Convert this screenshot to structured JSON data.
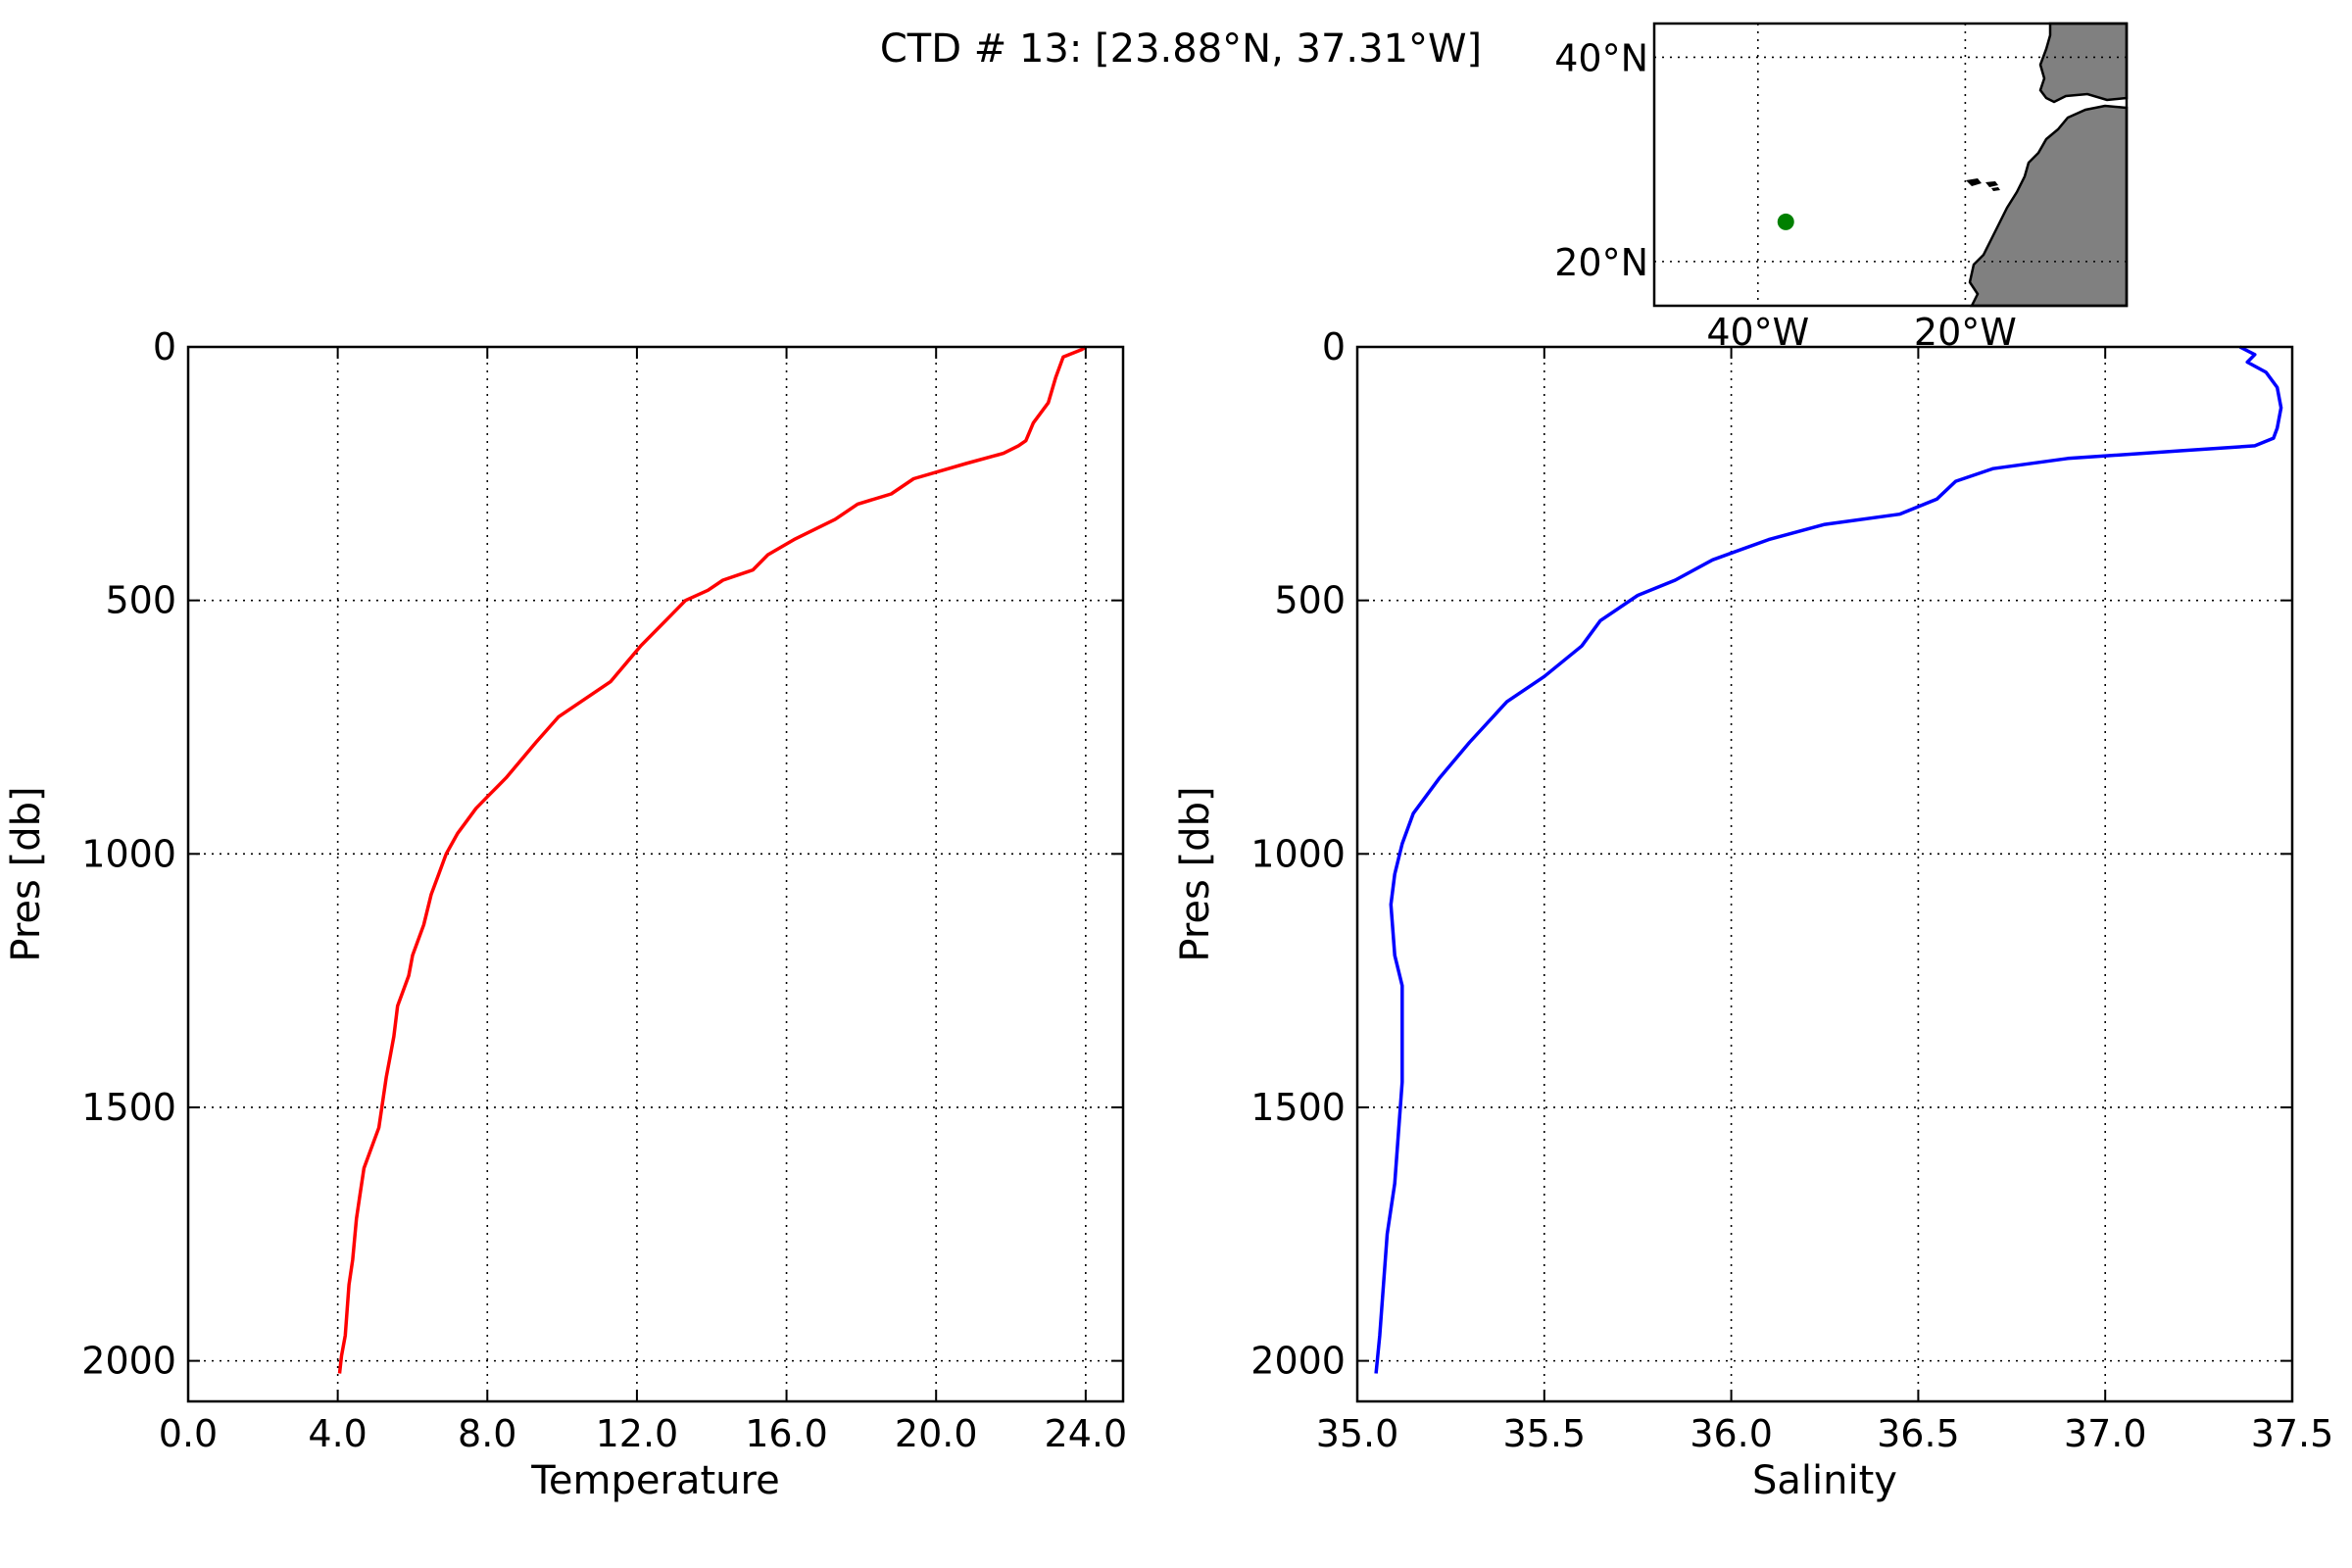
{
  "figure_title": "CTD # 13: [23.88°N, 37.31°W]",
  "chart_data": [
    {
      "type": "line",
      "xlabel": "Temperature",
      "ylabel": "Pres [db]",
      "xlim": [
        0,
        25
      ],
      "ylim": [
        2080,
        0
      ],
      "y_inverted": true,
      "xticks": [
        0,
        4,
        8,
        12,
        16,
        20,
        24
      ],
      "xtick_labels": [
        "0.0",
        "4.0",
        "8.0",
        "12.0",
        "16.0",
        "20.0",
        "24.0"
      ],
      "yticks": [
        0,
        500,
        1000,
        1500,
        2000
      ],
      "ytick_labels": [
        "0",
        "500",
        "1000",
        "1500",
        "2000"
      ],
      "grid": true,
      "series": [
        {
          "color": "#ff0000",
          "x": [
            24.0,
            23.9,
            23.4,
            23.2,
            23.0,
            22.6,
            22.4,
            22.2,
            21.8,
            20.8,
            19.4,
            18.8,
            17.9,
            17.3,
            16.2,
            15.5,
            15.1,
            14.3,
            13.9,
            13.3,
            12.9,
            12.1,
            11.3,
            10.5,
            9.9,
            9.3,
            8.5,
            8.1,
            7.7,
            7.4,
            7.2,
            6.9,
            6.7,
            6.5,
            6.3,
            6.0,
            5.9,
            5.6,
            5.5,
            5.4,
            5.3,
            5.1,
            4.9,
            4.7,
            4.6,
            4.5,
            4.45,
            4.4,
            4.3,
            4.25,
            4.2,
            4.1,
            4.05
          ],
          "y": [
            0,
            5,
            20,
            60,
            110,
            150,
            185,
            195,
            210,
            230,
            260,
            290,
            310,
            340,
            380,
            410,
            440,
            460,
            480,
            500,
            530,
            590,
            660,
            700,
            730,
            780,
            850,
            880,
            910,
            940,
            960,
            1000,
            1040,
            1080,
            1140,
            1200,
            1240,
            1300,
            1360,
            1400,
            1440,
            1540,
            1580,
            1620,
            1670,
            1720,
            1760,
            1800,
            1850,
            1900,
            1950,
            1990,
            2025
          ]
        }
      ]
    },
    {
      "type": "line",
      "xlabel": "Salinity",
      "ylabel": "Pres [db]",
      "xlim": [
        35.0,
        37.5
      ],
      "ylim": [
        2080,
        0
      ],
      "y_inverted": true,
      "xticks": [
        35.0,
        35.5,
        36.0,
        36.5,
        37.0,
        37.5
      ],
      "xtick_labels": [
        "35.0",
        "35.5",
        "36.0",
        "36.5",
        "37.0",
        "37.5"
      ],
      "yticks": [
        0,
        500,
        1000,
        1500,
        2000
      ],
      "ytick_labels": [
        "0",
        "500",
        "1000",
        "1500",
        "2000"
      ],
      "grid": true,
      "series": [
        {
          "color": "#0000ff",
          "x": [
            37.36,
            37.4,
            37.38,
            37.43,
            37.46,
            37.47,
            37.46,
            37.45,
            37.4,
            37.2,
            36.9,
            36.7,
            36.6,
            36.55,
            36.45,
            36.25,
            36.1,
            35.95,
            35.85,
            35.75,
            35.65,
            35.6,
            35.5,
            35.4,
            35.3,
            35.22,
            35.15,
            35.12,
            35.1,
            35.09,
            35.1,
            35.12,
            35.12,
            35.12,
            35.11,
            35.1,
            35.08,
            35.07,
            35.06,
            35.05
          ],
          "y": [
            0,
            15,
            30,
            50,
            80,
            120,
            160,
            180,
            195,
            205,
            220,
            240,
            265,
            300,
            330,
            350,
            380,
            420,
            460,
            490,
            540,
            590,
            650,
            700,
            780,
            850,
            920,
            980,
            1040,
            1100,
            1200,
            1260,
            1330,
            1450,
            1550,
            1650,
            1750,
            1850,
            1950,
            2025
          ]
        }
      ]
    }
  ],
  "inset_map": {
    "xticks": [
      -40,
      -20
    ],
    "xtick_labels": [
      "40°W",
      "20°W"
    ],
    "yticks": [
      20,
      40
    ],
    "ytick_labels": [
      "20°N",
      "40°N"
    ],
    "land_color": "#808080",
    "station": {
      "lat": 23.88,
      "lon": -37.31,
      "color": "#008000"
    }
  }
}
